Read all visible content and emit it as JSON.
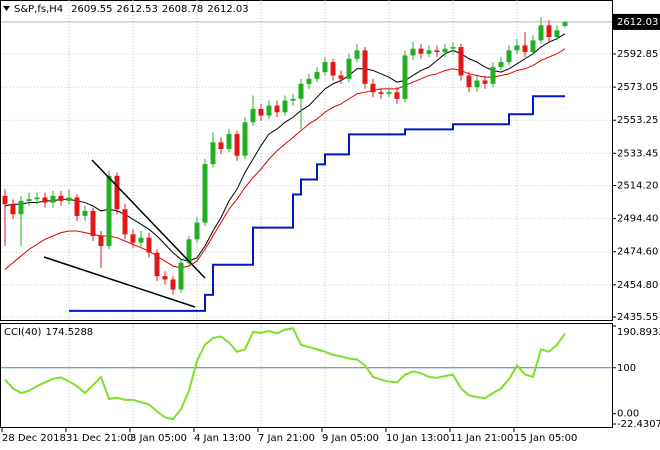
{
  "chart_data": [
    {
      "type": "candlestick",
      "title": "S&P,fs,H4",
      "categories": [
        "28 Dec 2018",
        null,
        null,
        null,
        null,
        null,
        null,
        null,
        "31 Dec 21:00",
        null,
        null,
        null,
        null,
        null,
        null,
        null,
        "3 Jan 05:00",
        null,
        null,
        null,
        null,
        null,
        null,
        null,
        "4 Jan 13:00",
        null,
        null,
        null,
        null,
        null,
        null,
        null,
        "7 Jan 21:00",
        null,
        null,
        null,
        null,
        null,
        null,
        null,
        "9 Jan 05:00",
        null,
        null,
        null,
        null,
        null,
        null,
        null,
        "10 Jan 13:00",
        null,
        null,
        null,
        null,
        null,
        null,
        null,
        "11 Jan 21:00",
        null,
        null,
        null,
        null,
        null,
        null,
        null,
        "15 Jan 05:00",
        null,
        null,
        null,
        null,
        null,
        null
      ],
      "open": [
        2508,
        2503,
        2497,
        2505,
        2506,
        2507,
        2504,
        2508,
        2505,
        2507,
        2496,
        2499,
        2484,
        2478,
        2520,
        2500,
        2485,
        2480,
        2483,
        2474,
        2460,
        2458,
        2452,
        2468,
        2482,
        2492,
        2527,
        2540,
        2536,
        2545,
        2532,
        2552,
        2560,
        2556,
        2562,
        2558,
        2565,
        2566,
        2575,
        2578,
        2582,
        2588,
        2580,
        2578,
        2590,
        2595,
        2575,
        2570,
        2569,
        2570,
        2566,
        2592,
        2596,
        2593,
        2595,
        2594,
        2596,
        2597,
        2580,
        2573,
        2577,
        2575,
        2585,
        2588,
        2595,
        2598,
        2594,
        2601,
        2610,
        2603,
        2609.55
      ],
      "high": [
        2512,
        2506,
        2508,
        2510,
        2510,
        2510,
        2511,
        2511,
        2512,
        2509,
        2502,
        2501,
        2487,
        2523,
        2522,
        2503,
        2488,
        2487,
        2486,
        2476,
        2463,
        2460,
        2470,
        2484,
        2495,
        2530,
        2546,
        2543,
        2548,
        2547,
        2555,
        2568,
        2563,
        2565,
        2565,
        2568,
        2569,
        2578,
        2581,
        2585,
        2591,
        2590,
        2583,
        2593,
        2599,
        2597,
        2578,
        2572,
        2573,
        2573,
        2595,
        2600,
        2599,
        2598,
        2598,
        2599,
        2600,
        2599,
        2582,
        2580,
        2580,
        2588,
        2591,
        2598,
        2602,
        2606,
        2604,
        2615,
        2613,
        2610,
        2612.53
      ],
      "low": [
        2478,
        2494,
        2478,
        2502,
        2503,
        2501,
        2501,
        2502,
        2503,
        2493,
        2493,
        2481,
        2465,
        2476,
        2497,
        2482,
        2477,
        2477,
        2471,
        2457,
        2455,
        2449,
        2450,
        2466,
        2480,
        2490,
        2525,
        2533,
        2534,
        2529,
        2530,
        2550,
        2553,
        2554,
        2555,
        2556,
        2562,
        2548,
        2572,
        2576,
        2580,
        2577,
        2575,
        2576,
        2588,
        2572,
        2567,
        2566,
        2567,
        2563,
        2564,
        2589,
        2590,
        2591,
        2591,
        2591,
        2593,
        2577,
        2570,
        2570,
        2572,
        2573,
        2583,
        2586,
        2593,
        2591,
        2592,
        2599,
        2600,
        2601,
        2608.78
      ],
      "close": [
        2503,
        2497,
        2505,
        2506,
        2507,
        2504,
        2508,
        2505,
        2507,
        2496,
        2499,
        2484,
        2478,
        2520,
        2500,
        2485,
        2480,
        2483,
        2474,
        2460,
        2458,
        2452,
        2468,
        2482,
        2492,
        2527,
        2540,
        2536,
        2545,
        2532,
        2552,
        2560,
        2556,
        2562,
        2558,
        2565,
        2566,
        2575,
        2578,
        2582,
        2588,
        2580,
        2578,
        2590,
        2595,
        2575,
        2570,
        2569,
        2570,
        2566,
        2592,
        2596,
        2593,
        2595,
        2594,
        2596,
        2597,
        2580,
        2573,
        2577,
        2575,
        2585,
        2588,
        2595,
        2598,
        2594,
        2601,
        2610,
        2603,
        2607,
        2612.03
      ],
      "up_color": "#22b022",
      "down_color": "#e01818",
      "overlays": [
        {
          "color": "#000000",
          "values": [
            2502,
            2503,
            2503,
            2504,
            2504,
            2505,
            2505,
            2506,
            2506,
            2505,
            2504,
            2502,
            2499,
            2500,
            2499,
            2497,
            2494,
            2491,
            2488,
            2484,
            2479,
            2474,
            2470,
            2469,
            2471,
            2478,
            2487,
            2495,
            2505,
            2512,
            2522,
            2530,
            2538,
            2545,
            2548,
            2552,
            2555,
            2559,
            2562,
            2567,
            2572,
            2575,
            2577,
            2580,
            2584,
            2584,
            2583,
            2581,
            2579,
            2576,
            2577,
            2580,
            2583,
            2585,
            2589,
            2593,
            2595,
            2593,
            2590,
            2588,
            2585,
            2583,
            2582,
            2584,
            2587,
            2590,
            2593,
            2597,
            2600,
            2602,
            2605
          ]
        },
        {
          "color": "#e00000",
          "values": [
            2464,
            2468,
            2472,
            2476,
            2479,
            2482,
            2484,
            2486,
            2487,
            2487,
            2486,
            2485,
            2484,
            2484,
            2483,
            2481,
            2479,
            2477,
            2475,
            2472,
            2469,
            2466,
            2465,
            2466,
            2469,
            2476,
            2484,
            2492,
            2500,
            2506,
            2513,
            2519,
            2524,
            2530,
            2535,
            2539,
            2543,
            2547,
            2551,
            2554,
            2558,
            2561,
            2563,
            2566,
            2569,
            2570,
            2571,
            2572,
            2572,
            2572,
            2574,
            2576,
            2578,
            2580,
            2581,
            2583,
            2584,
            2583,
            2581,
            2580,
            2579,
            2579,
            2580,
            2581,
            2583,
            2584,
            2586,
            2589,
            2591,
            2593,
            2596
          ]
        },
        {
          "color": "#0018c8",
          "step": true,
          "values": [
            null,
            null,
            null,
            null,
            null,
            null,
            null,
            null,
            2439.2,
            2439.2,
            2439.2,
            2439.2,
            2439.2,
            2439.2,
            2439.2,
            2439.2,
            2439.2,
            2439.2,
            2439.2,
            2439.2,
            2439.2,
            2439.2,
            2439.2,
            2439.2,
            2439.2,
            2448.8,
            2466.8,
            2466.8,
            2466.8,
            2466.8,
            2466.8,
            2489,
            2489,
            2489,
            2489,
            2489,
            2508.8,
            2517.8,
            2517.8,
            2526.8,
            2532.8,
            2532.8,
            2532.8,
            2544.8,
            2544.8,
            2544.8,
            2544.8,
            2544.8,
            2544.8,
            2544.8,
            2547.8,
            2547.8,
            2547.8,
            2547.8,
            2547.8,
            2547.8,
            2550.8,
            2550.8,
            2550.8,
            2550.8,
            2550.8,
            2550.8,
            2550.8,
            2556.8,
            2556.8,
            2556.8,
            2567.6,
            2567.6,
            2567.6,
            2567.6,
            2567.6
          ]
        }
      ],
      "ylim": [
        2433.76,
        2625.14
      ],
      "yticks": [
        2592.85,
        2573.05,
        2553.25,
        2533.45,
        {
          "value": 2514.2,
          "label": "2514.20"
        },
        {
          "value": 2494.4,
          "label": "2494.40"
        },
        {
          "value": 2474.6,
          "label": "2474.60"
        },
        {
          "value": 2454.8,
          "label": "2454.80"
        },
        2435.55
      ],
      "grid": true
    },
    {
      "type": "line",
      "title": "CCI(40)",
      "color": "#7ee02a",
      "values": [
        74,
        55,
        45,
        50,
        60,
        68,
        76,
        79,
        70,
        60,
        45,
        62,
        80,
        32,
        35,
        30,
        30,
        25,
        20,
        5,
        -8,
        -12,
        10,
        50,
        115,
        150,
        165,
        168,
        155,
        135,
        140,
        178,
        176,
        180,
        175,
        183,
        186,
        150,
        145,
        140,
        135,
        128,
        125,
        120,
        118,
        105,
        80,
        74,
        70,
        68,
        85,
        92,
        88,
        80,
        78,
        82,
        85,
        55,
        40,
        36,
        34,
        45,
        55,
        75,
        105,
        85,
        80,
        140,
        135,
        150,
        174.5288
      ],
      "ylim": [
        -22.4307,
        190.8932
      ],
      "yticks": [
        190.8932,
        100,
        {
          "value": 0,
          "label": "0.00"
        },
        -22.4307
      ],
      "levels": [
        100
      ],
      "level_color": "#4a7ab8"
    }
  ]
}
